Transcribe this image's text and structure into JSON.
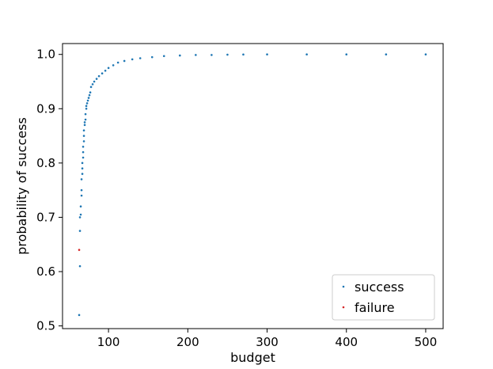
{
  "chart_data": {
    "type": "scatter",
    "xlabel": "budget",
    "ylabel": "probability of success",
    "xlim": [
      42,
      522
    ],
    "ylim": [
      0.495,
      1.02
    ],
    "xticks": [
      100,
      200,
      300,
      400,
      500
    ],
    "yticks": [
      0.5,
      0.6,
      0.7,
      0.8,
      0.9,
      1.0
    ],
    "xtick_labels": [
      "100",
      "200",
      "300",
      "400",
      "500"
    ],
    "ytick_labels": [
      "0.5",
      "0.6",
      "0.7",
      "0.8",
      "0.9",
      "1.0"
    ],
    "grid": false,
    "legend_position": "lower-right",
    "series": [
      {
        "name": "success",
        "color": "#1f77b4",
        "points": [
          [
            63,
            0.52
          ],
          [
            64,
            0.61
          ],
          [
            64,
            0.675
          ],
          [
            64,
            0.7
          ],
          [
            65,
            0.705
          ],
          [
            65,
            0.72
          ],
          [
            66,
            0.74
          ],
          [
            66,
            0.75
          ],
          [
            66,
            0.77
          ],
          [
            67,
            0.78
          ],
          [
            67,
            0.79
          ],
          [
            67,
            0.8
          ],
          [
            68,
            0.81
          ],
          [
            68,
            0.82
          ],
          [
            68,
            0.83
          ],
          [
            69,
            0.84
          ],
          [
            69,
            0.85
          ],
          [
            69,
            0.86
          ],
          [
            70,
            0.87
          ],
          [
            70,
            0.875
          ],
          [
            71,
            0.88
          ],
          [
            71,
            0.89
          ],
          [
            72,
            0.9
          ],
          [
            72,
            0.905
          ],
          [
            73,
            0.91
          ],
          [
            74,
            0.915
          ],
          [
            75,
            0.92
          ],
          [
            76,
            0.925
          ],
          [
            77,
            0.93
          ],
          [
            78,
            0.94
          ],
          [
            80,
            0.945
          ],
          [
            82,
            0.95
          ],
          [
            85,
            0.955
          ],
          [
            88,
            0.96
          ],
          [
            92,
            0.965
          ],
          [
            96,
            0.97
          ],
          [
            100,
            0.975
          ],
          [
            106,
            0.98
          ],
          [
            112,
            0.985
          ],
          [
            120,
            0.988
          ],
          [
            130,
            0.991
          ],
          [
            140,
            0.993
          ],
          [
            155,
            0.995
          ],
          [
            170,
            0.997
          ],
          [
            190,
            0.998
          ],
          [
            210,
            0.999
          ],
          [
            230,
            0.999
          ],
          [
            250,
            0.9995
          ],
          [
            270,
            0.9998
          ],
          [
            300,
            1.0
          ],
          [
            350,
            1.0
          ],
          [
            400,
            1.0
          ],
          [
            450,
            1.0
          ],
          [
            500,
            1.0
          ]
        ]
      },
      {
        "name": "failure",
        "color": "#d62728",
        "points": [
          [
            63,
            0.64
          ]
        ]
      }
    ]
  }
}
